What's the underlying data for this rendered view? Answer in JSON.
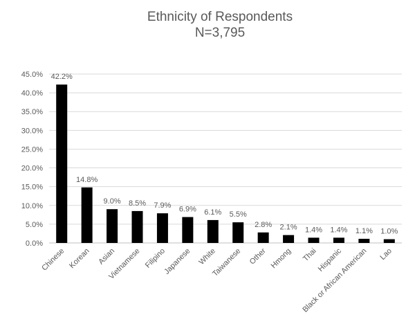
{
  "chart_data": {
    "type": "bar",
    "title": "Ethnicity of Respondents",
    "subtitle": "N=3,795",
    "xlabel": "",
    "ylabel": "",
    "ylim": [
      0,
      45
    ],
    "ytick_step": 5,
    "ytick_labels": [
      "0.0%",
      "5.0%",
      "10.0%",
      "15.0%",
      "20.0%",
      "25.0%",
      "30.0%",
      "35.0%",
      "40.0%",
      "45.0%"
    ],
    "grid": true,
    "categories": [
      "Chinese",
      "Korean",
      "Asian",
      "Vietnamese",
      "Filipino",
      "Japanese",
      "White",
      "Taiwanese",
      "Other",
      "Hmong",
      "Thai",
      "Hispanic",
      "Black or African American",
      "Lao"
    ],
    "values": [
      42.2,
      14.8,
      9.0,
      8.5,
      7.9,
      6.9,
      6.1,
      5.5,
      2.8,
      2.1,
      1.4,
      1.4,
      1.1,
      1.0
    ],
    "data_labels": [
      "42.2%",
      "14.8%",
      "9.0%",
      "8.5%",
      "7.9%",
      "6.9%",
      "6.1%",
      "5.5%",
      "2.8%",
      "2.1%",
      "1.4%",
      "1.4%",
      "1.1%",
      "1.0%"
    ],
    "bar_color": "#000000"
  }
}
